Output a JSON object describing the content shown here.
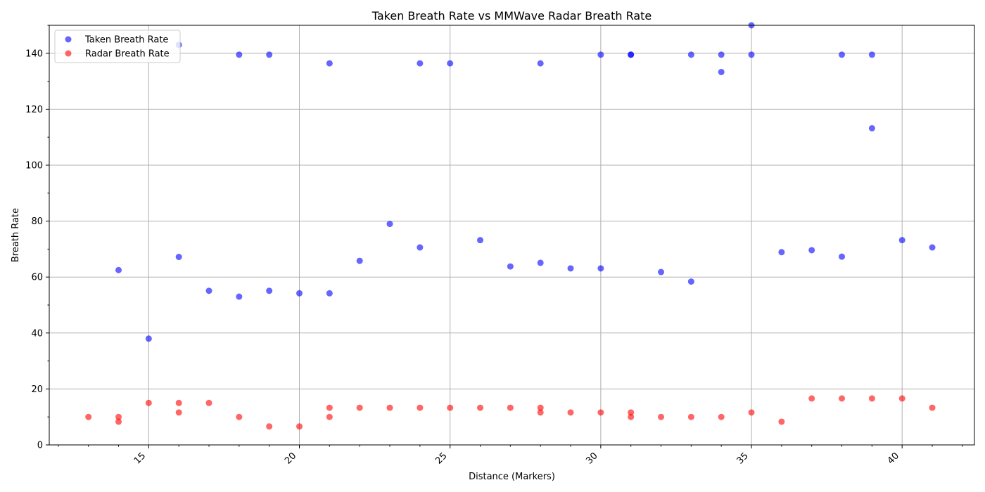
{
  "chart_data": {
    "type": "scatter",
    "title": "Taken Breath Rate vs MMWave Radar Breath Rate",
    "xlabel": "Distance (Markers)",
    "ylabel": "Breath Rate",
    "xlim": [
      11.7,
      42.4
    ],
    "ylim": [
      0,
      150
    ],
    "xticks": [
      15,
      20,
      25,
      30,
      35,
      40
    ],
    "yticks": [
      0,
      20,
      40,
      60,
      80,
      100,
      120,
      140
    ],
    "grid": true,
    "legend_position": "top-left",
    "series": [
      {
        "name": "Taken Breath Rate",
        "color": "#0000ff",
        "points": [
          [
            14,
            62.5
          ],
          [
            15,
            38
          ],
          [
            16,
            67.2
          ],
          [
            16,
            143
          ],
          [
            17,
            55.1
          ],
          [
            18,
            53
          ],
          [
            18,
            139.5
          ],
          [
            19,
            55.1
          ],
          [
            19,
            139.5
          ],
          [
            20,
            54.2
          ],
          [
            21,
            54.2
          ],
          [
            21,
            136.4
          ],
          [
            22,
            65.8
          ],
          [
            23,
            79
          ],
          [
            24,
            70.6
          ],
          [
            24,
            136.4
          ],
          [
            25,
            136.4
          ],
          [
            26,
            73.2
          ],
          [
            27,
            63.8
          ],
          [
            28,
            65.1
          ],
          [
            28,
            136.4
          ],
          [
            29,
            63.1
          ],
          [
            30,
            63.1
          ],
          [
            30,
            139.5
          ],
          [
            31,
            139.5
          ],
          [
            31,
            139.5
          ],
          [
            32,
            61.8
          ],
          [
            33,
            58.4
          ],
          [
            33,
            139.5
          ],
          [
            34,
            133.3
          ],
          [
            34,
            139.5
          ],
          [
            35,
            139.5
          ],
          [
            35,
            150
          ],
          [
            36,
            68.9
          ],
          [
            37,
            69.6
          ],
          [
            38,
            67.3
          ],
          [
            38,
            139.5
          ],
          [
            39,
            113.2
          ],
          [
            39,
            139.5
          ],
          [
            40,
            73.2
          ],
          [
            41,
            70.6
          ]
        ]
      },
      {
        "name": "Radar Breath Rate",
        "color": "#ff0000",
        "points": [
          [
            13,
            10
          ],
          [
            14,
            10
          ],
          [
            14,
            8.3
          ],
          [
            15,
            15
          ],
          [
            16,
            11.6
          ],
          [
            16,
            15
          ],
          [
            17,
            15
          ],
          [
            18,
            10
          ],
          [
            19,
            6.6
          ],
          [
            20,
            6.6
          ],
          [
            21,
            13.3
          ],
          [
            21,
            10
          ],
          [
            22,
            13.3
          ],
          [
            23,
            13.3
          ],
          [
            24,
            13.3
          ],
          [
            25,
            13.3
          ],
          [
            26,
            13.3
          ],
          [
            27,
            13.3
          ],
          [
            28,
            13.3
          ],
          [
            28,
            11.6
          ],
          [
            29,
            11.6
          ],
          [
            30,
            11.6
          ],
          [
            31,
            11.6
          ],
          [
            31,
            10
          ],
          [
            32,
            10
          ],
          [
            33,
            10
          ],
          [
            34,
            10
          ],
          [
            35,
            11.6
          ],
          [
            36,
            8.3
          ],
          [
            37,
            16.6
          ],
          [
            38,
            16.6
          ],
          [
            39,
            16.6
          ],
          [
            40,
            16.6
          ],
          [
            41,
            13.3
          ]
        ]
      }
    ]
  }
}
